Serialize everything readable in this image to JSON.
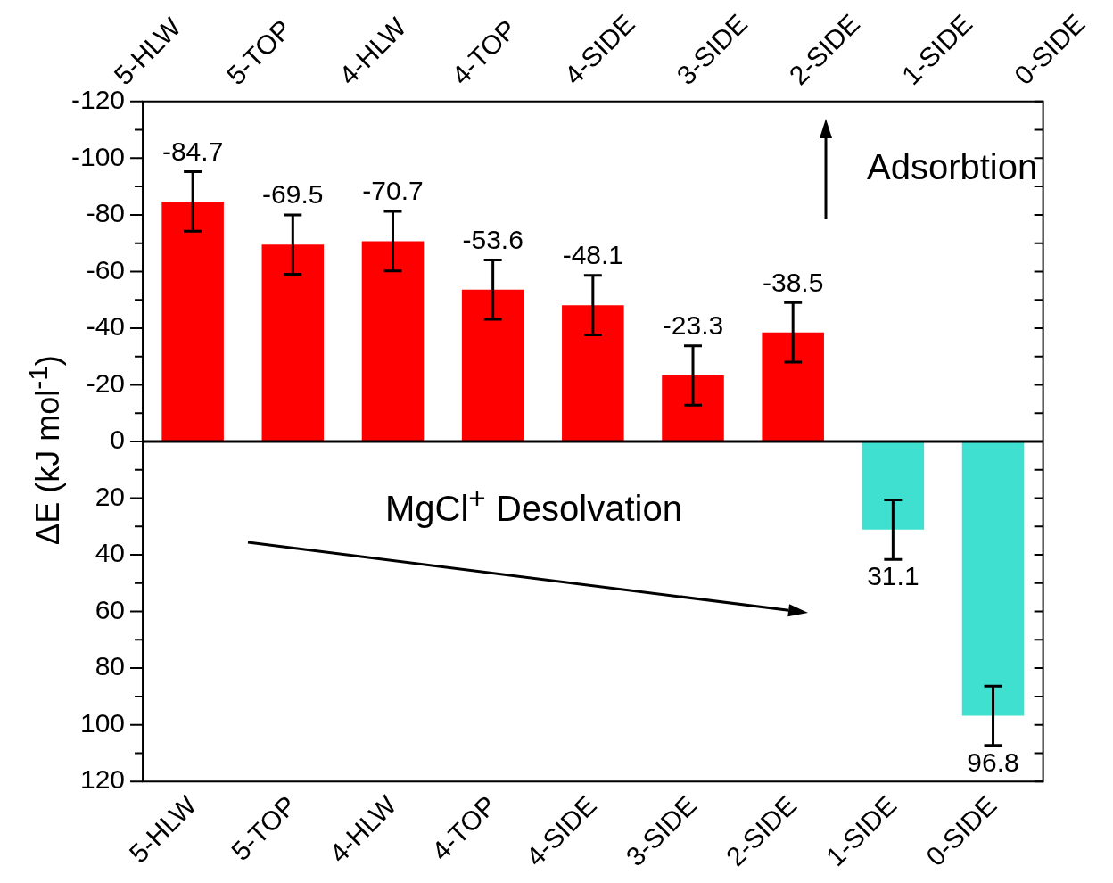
{
  "chart_data": {
    "type": "bar",
    "ylabel": "ΔE (kJ mol$^{-1}$)",
    "categories": [
      "5-HLW",
      "5-TOP",
      "4-HLW",
      "4-TOP",
      "4-SIDE",
      "3-SIDE",
      "2-SIDE",
      "1-SIDE",
      "0-SIDE"
    ],
    "values": [
      -84.7,
      -69.5,
      -70.7,
      -53.6,
      -48.1,
      -23.3,
      -38.5,
      31.1,
      96.8
    ],
    "errors": [
      10.5,
      10.5,
      10.5,
      10.5,
      10.5,
      10.5,
      10.5,
      10.5,
      10.5
    ],
    "colors": [
      "#ff0000",
      "#ff0000",
      "#ff0000",
      "#ff0000",
      "#ff0000",
      "#ff0000",
      "#ff0000",
      "#40e0d0",
      "#40e0d0"
    ],
    "ylim": [
      120,
      -120
    ],
    "yticks": [
      -120,
      {
        "value": -110,
        "label": null
      },
      -100,
      {
        "value": -90,
        "label": null
      },
      -80,
      {
        "value": -70,
        "label": null
      },
      -60,
      {
        "value": -50,
        "label": null
      },
      -40,
      {
        "value": -30,
        "label": null
      },
      -20,
      {
        "value": -10,
        "label": null
      },
      0,
      {
        "value": 10,
        "label": null
      },
      20,
      {
        "value": 30,
        "label": null
      },
      40,
      {
        "value": 50,
        "label": null
      },
      60,
      {
        "value": 70,
        "label": null
      },
      80,
      {
        "value": 90,
        "label": null
      },
      100,
      {
        "value": 110,
        "label": null
      },
      120
    ],
    "ref_lines": [
      {
        "axis": "y",
        "value": 0,
        "color": "#000000"
      }
    ],
    "data_labels": true,
    "grid": false,
    "legend": false,
    "annotations": [
      "Adsorbtion",
      "MgCl$^{+}$ Desolvation"
    ]
  }
}
